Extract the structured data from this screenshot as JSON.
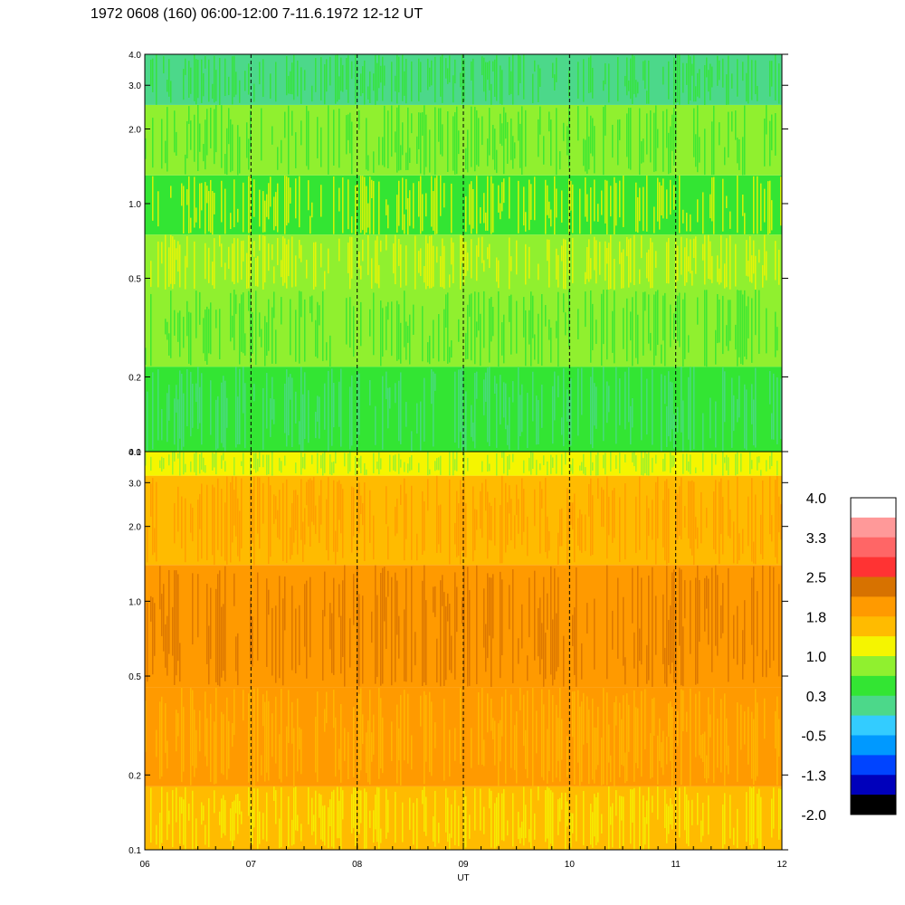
{
  "chart_data": {
    "type": "heatmap",
    "title": "1972 0608 (160) 06:00-12:00 7-11.6.1972  12-12 UT",
    "xlabel": "UT",
    "x_range": [
      6,
      12
    ],
    "x_ticks": [
      "06",
      "07",
      "08",
      "09",
      "10",
      "11",
      "12"
    ],
    "x_dashed_lines": [
      7,
      8,
      9,
      10,
      11
    ],
    "y_scale": "log",
    "y_range": [
      0.1,
      4.0
    ],
    "y_ticks": [
      {
        "value": 4.0,
        "label": "4.0"
      },
      {
        "value": 3.0,
        "label": "3.0"
      },
      {
        "value": 2.0,
        "label": "2.0"
      },
      {
        "value": 1.0,
        "label": "1.0"
      },
      {
        "value": 0.5,
        "label": "0.5"
      },
      {
        "value": 0.2,
        "label": "0.2"
      },
      {
        "value": 0.1,
        "label": "0.1"
      }
    ],
    "panels": [
      {
        "name": "upper",
        "bands": [
          {
            "y_from": 0.1,
            "y_to": 0.22,
            "color": "#33e533",
            "mix": "#4cd88a"
          },
          {
            "y_from": 0.22,
            "y_to": 0.45,
            "color": "#90f02f",
            "mix": "#33e533"
          },
          {
            "y_from": 0.45,
            "y_to": 0.75,
            "color": "#90f02f",
            "mix": "#f5f500"
          },
          {
            "y_from": 0.75,
            "y_to": 1.3,
            "color": "#33e533",
            "mix": "#f5f500"
          },
          {
            "y_from": 1.3,
            "y_to": 2.5,
            "color": "#90f02f",
            "mix": "#33e533"
          },
          {
            "y_from": 2.5,
            "y_to": 4.0,
            "color": "#4cd88a",
            "mix": "#33e533"
          }
        ]
      },
      {
        "name": "lower",
        "bands": [
          {
            "y_from": 0.1,
            "y_to": 0.18,
            "color": "#ffbb00",
            "mix": "#f5f500"
          },
          {
            "y_from": 0.18,
            "y_to": 0.45,
            "color": "#ff9a00",
            "mix": "#ffbb00"
          },
          {
            "y_from": 0.45,
            "y_to": 1.4,
            "color": "#ff9a00",
            "mix": "#d77200"
          },
          {
            "y_from": 1.4,
            "y_to": 3.2,
            "color": "#ffbb00",
            "mix": "#ff9a00"
          },
          {
            "y_from": 3.2,
            "y_to": 4.0,
            "color": "#f5f500",
            "mix": "#90f02f"
          }
        ]
      }
    ],
    "colorbar": {
      "colors": [
        "#ffffff",
        "#ff9999",
        "#ff6666",
        "#ff3333",
        "#d77200",
        "#ff9a00",
        "#ffbb00",
        "#f5f500",
        "#90f02f",
        "#33e533",
        "#4cd88a",
        "#33ccff",
        "#0099ff",
        "#0044ff",
        "#0000bb",
        "#000000"
      ],
      "tick_labels": [
        "4.0",
        "3.3",
        "2.5",
        "1.8",
        "1.0",
        "0.3",
        "-0.5",
        "-1.3",
        "-2.0"
      ]
    }
  }
}
